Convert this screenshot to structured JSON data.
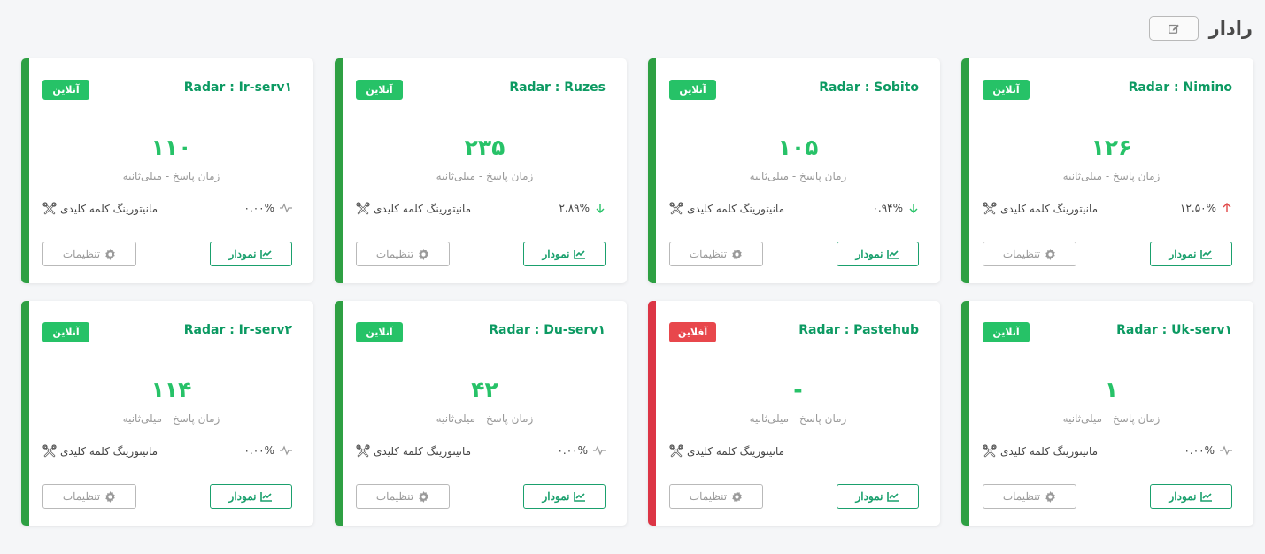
{
  "page": {
    "title": "رادار"
  },
  "cards": [
    {
      "title": "Radar : Nimino",
      "status": "آنلاین",
      "offline": false,
      "value": "۱۲۶",
      "value_caption": "زمان پاسخ - میلی‌ثانیه",
      "keyword_label": "مانیتورینگ کلمه کلیدی",
      "change": "۱۲.۵۰%",
      "trend": "up",
      "chart_label": "نمودار",
      "settings_label": "تنظیمات"
    },
    {
      "title": "Radar : Sobito",
      "status": "آنلاین",
      "offline": false,
      "value": "۱۰۵",
      "value_caption": "زمان پاسخ - میلی‌ثانیه",
      "keyword_label": "مانیتورینگ کلمه کلیدی",
      "change": "۰.۹۴%",
      "trend": "down",
      "chart_label": "نمودار",
      "settings_label": "تنظیمات"
    },
    {
      "title": "Radar : Ruzes",
      "status": "آنلاین",
      "offline": false,
      "value": "۲۳۵",
      "value_caption": "زمان پاسخ - میلی‌ثانیه",
      "keyword_label": "مانیتورینگ کلمه کلیدی",
      "change": "۲.۸۹%",
      "trend": "down",
      "chart_label": "نمودار",
      "settings_label": "تنظیمات"
    },
    {
      "title": "Radar : Ir-serv۱",
      "status": "آنلاین",
      "offline": false,
      "value": "۱۱۰",
      "value_caption": "زمان پاسخ - میلی‌ثانیه",
      "keyword_label": "مانیتورینگ کلمه کلیدی",
      "change": "۰.۰۰%",
      "trend": "flat",
      "chart_label": "نمودار",
      "settings_label": "تنظیمات"
    },
    {
      "title": "Radar : Uk-serv۱",
      "status": "آنلاین",
      "offline": false,
      "value": "۱",
      "value_caption": "زمان پاسخ - میلی‌ثانیه",
      "keyword_label": "مانیتورینگ کلمه کلیدی",
      "change": "۰.۰۰%",
      "trend": "flat",
      "chart_label": "نمودار",
      "settings_label": "تنظیمات"
    },
    {
      "title": "Radar : Pastehub",
      "status": "آفلاین",
      "offline": true,
      "value": "-",
      "value_caption": "زمان پاسخ - میلی‌ثانیه",
      "keyword_label": "مانیتورینگ کلمه کلیدی",
      "change": "",
      "trend": "none",
      "chart_label": "نمودار",
      "settings_label": "تنظیمات"
    },
    {
      "title": "Radar : Du-serv۱",
      "status": "آنلاین",
      "offline": false,
      "value": "۴۲",
      "value_caption": "زمان پاسخ - میلی‌ثانیه",
      "keyword_label": "مانیتورینگ کلمه کلیدی",
      "change": "۰.۰۰%",
      "trend": "flat",
      "chart_label": "نمودار",
      "settings_label": "تنظیمات"
    },
    {
      "title": "Radar : Ir-serv۲",
      "status": "آنلاین",
      "offline": false,
      "value": "۱۱۴",
      "value_caption": "زمان پاسخ - میلی‌ثانیه",
      "keyword_label": "مانیتورینگ کلمه کلیدی",
      "change": "۰.۰۰%",
      "trend": "flat",
      "chart_label": "نمودار",
      "settings_label": "تنظیمات"
    }
  ],
  "icons": {
    "edit": "pencil-square-icon",
    "keyword": "tools-icon",
    "chart": "line-chart-icon",
    "settings": "gear-icon",
    "trend_up": "arrow-up-icon",
    "trend_down": "arrow-down-icon",
    "trend_flat": "pulse-icon"
  },
  "colors": {
    "online": "#26c267",
    "offline": "#e8474c",
    "title": "#0c9a62",
    "value": "#27c268",
    "up": "#e04848",
    "down": "#26c267",
    "flat": "#9a9a9a"
  }
}
